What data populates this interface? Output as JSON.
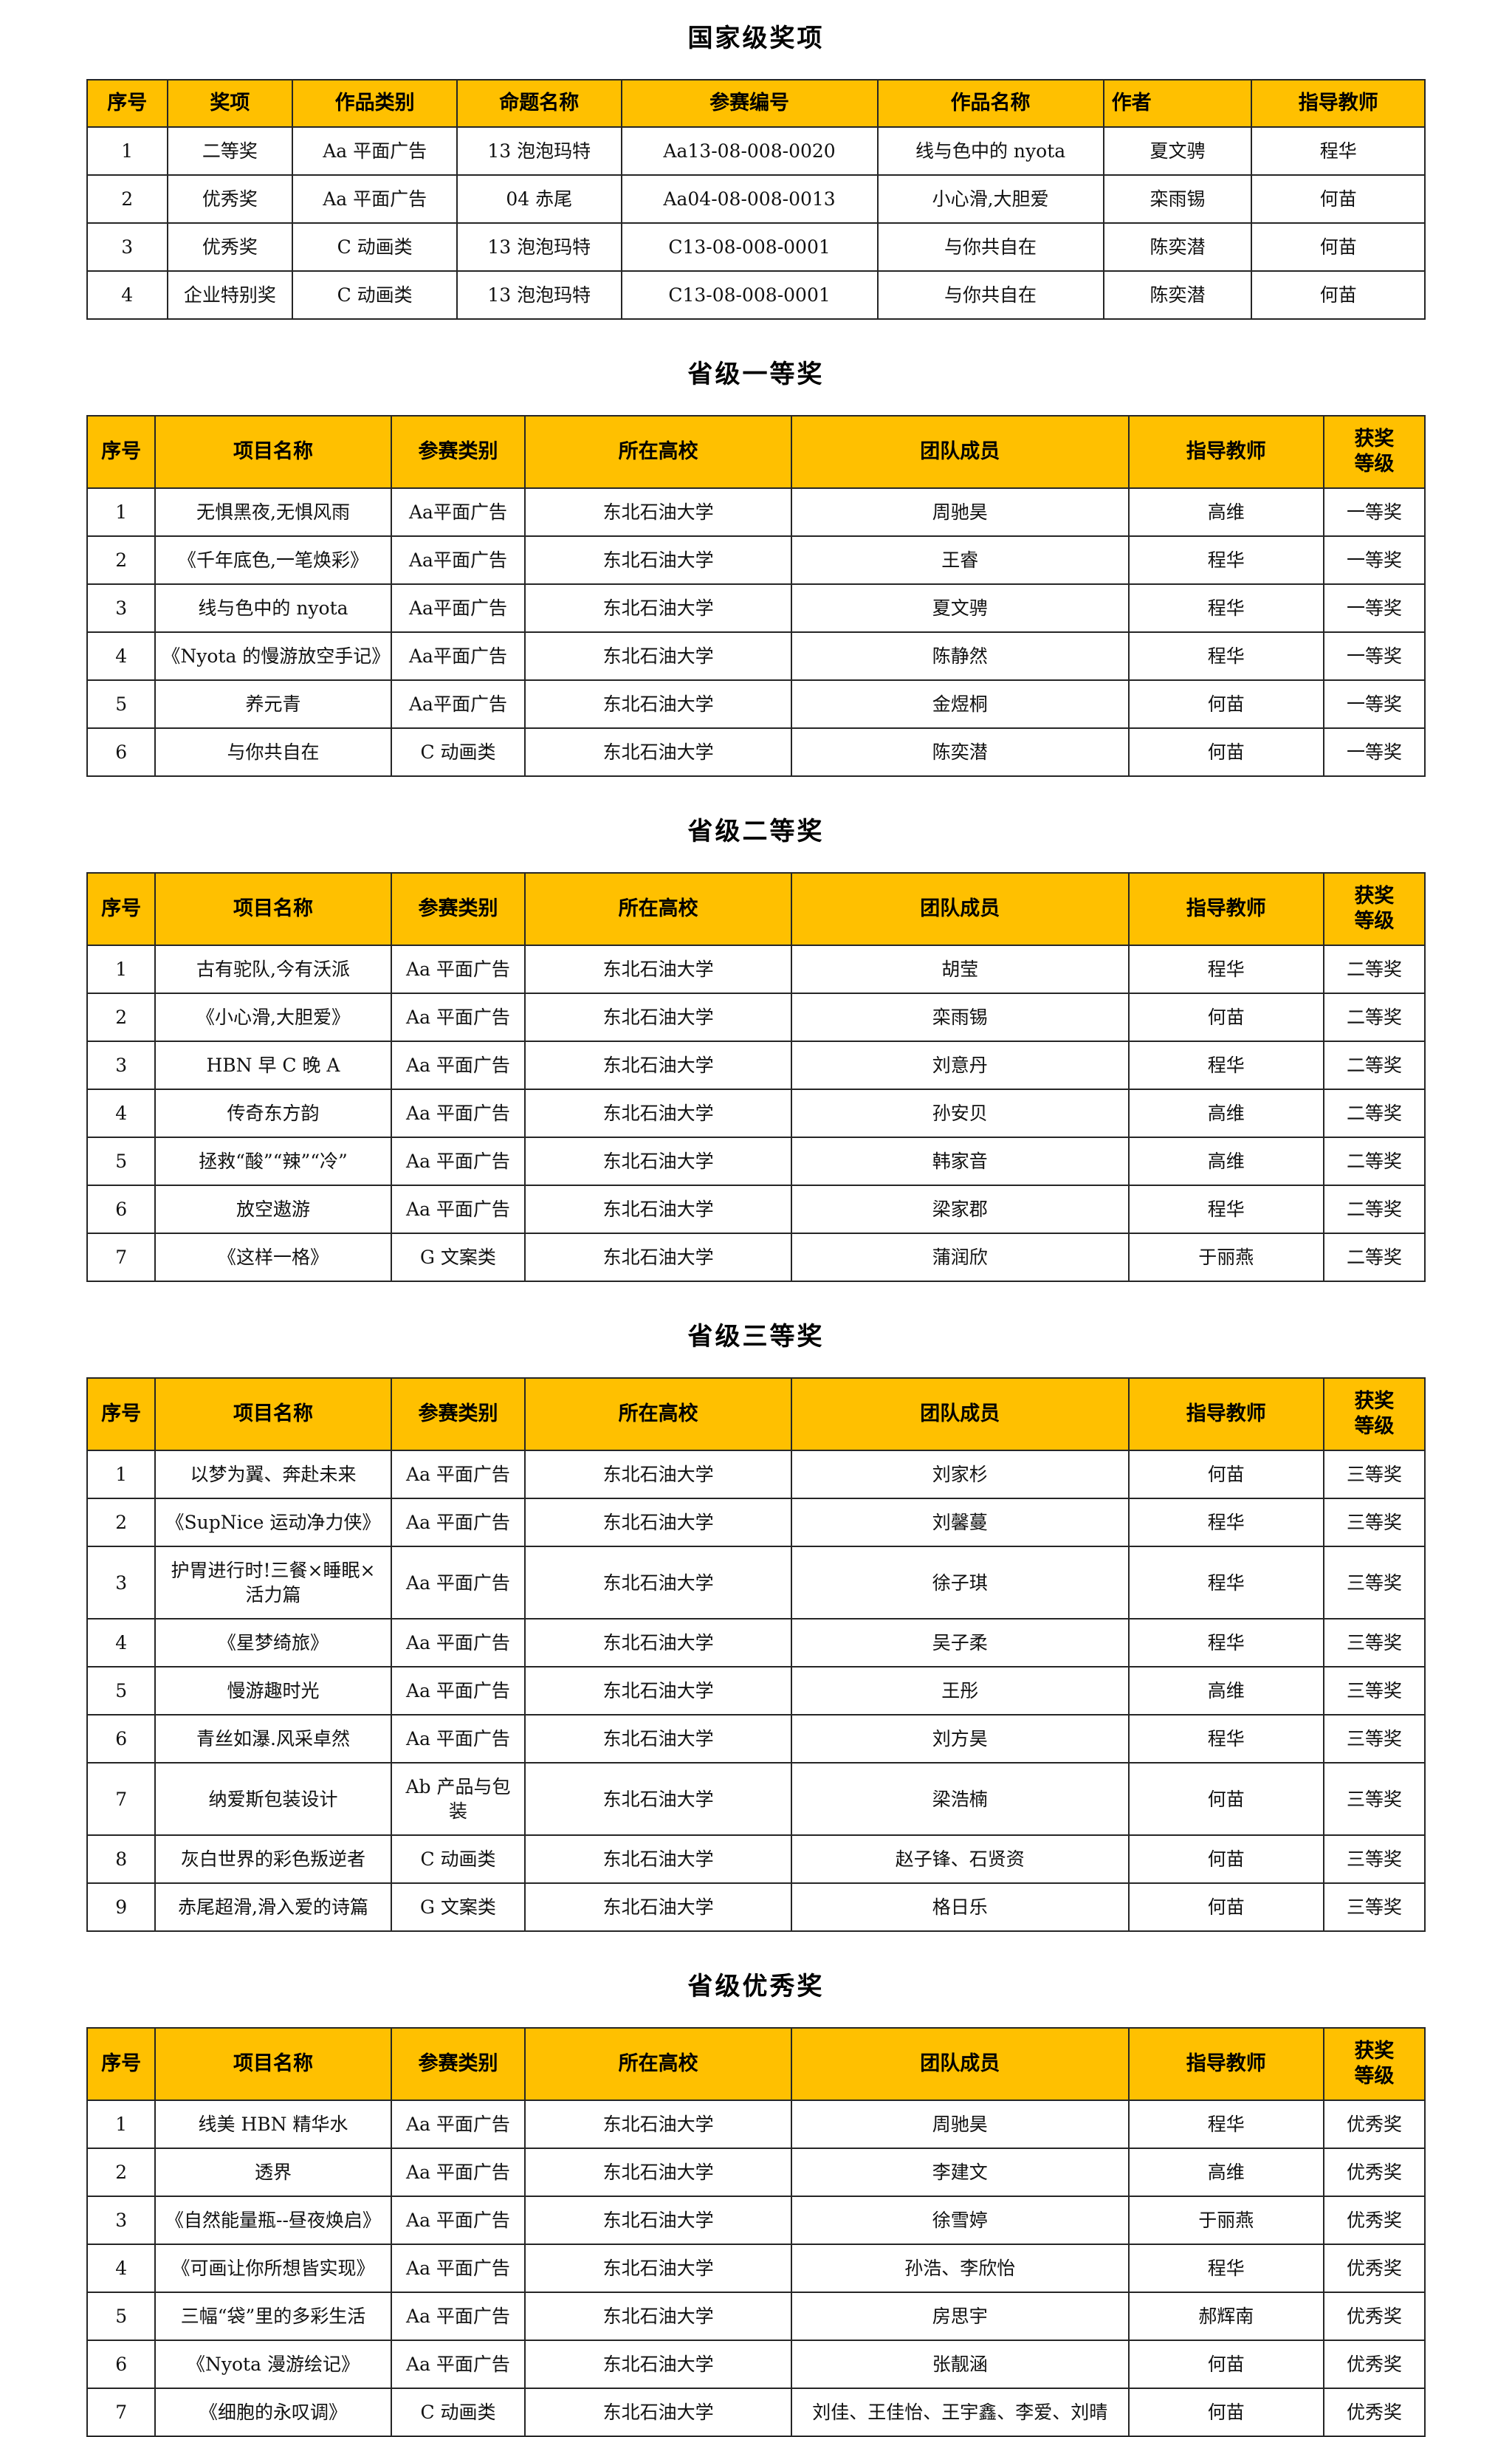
{
  "colors": {
    "header_background": "#FFC000",
    "grid_border": "#262626",
    "text": "#111111",
    "page_background": "#ffffff"
  },
  "sections": [
    {
      "title": "国家级奖项",
      "columns": [
        "序号",
        "奖项",
        "作品类别",
        "命题名称",
        "参赛编号",
        "作品名称",
        "作者",
        "指导教师"
      ],
      "rows": [
        [
          "1",
          "二等奖",
          "Aa 平面广告",
          "13 泡泡玛特",
          "Aa13-08-008-0020",
          "线与色中的 nyota",
          "夏文骋",
          "程华"
        ],
        [
          "2",
          "优秀奖",
          "Aa 平面广告",
          "04 赤尾",
          "Aa04-08-008-0013",
          "小心滑,大胆爱",
          "栾雨锡",
          "何苗"
        ],
        [
          "3",
          "优秀奖",
          "C 动画类",
          "13 泡泡玛特",
          "C13-08-008-0001",
          "与你共自在",
          "陈奕潜",
          "何苗"
        ],
        [
          "4",
          "企业特别奖",
          "C 动画类",
          "13 泡泡玛特",
          "C13-08-008-0001",
          "与你共自在",
          "陈奕潜",
          "何苗"
        ]
      ]
    },
    {
      "title": "省级一等奖",
      "columns": [
        "序号",
        "项目名称",
        "参赛类别",
        "所在高校",
        "团队成员",
        "指导教师",
        "获奖\n等级"
      ],
      "rows": [
        [
          "1",
          "无惧黑夜,无惧风雨",
          "Aa平面广告",
          "东北石油大学",
          "周驰昊",
          "高维",
          "一等奖"
        ],
        [
          "2",
          "《千年底色,一笔焕彩》",
          "Aa平面广告",
          "东北石油大学",
          "王睿",
          "程华",
          "一等奖"
        ],
        [
          "3",
          "线与色中的 nyota",
          "Aa平面广告",
          "东北石油大学",
          "夏文骋",
          "程华",
          "一等奖"
        ],
        [
          "4",
          "《Nyota 的慢游放空手记》",
          "Aa平面广告",
          "东北石油大学",
          "陈静然",
          "程华",
          "一等奖"
        ],
        [
          "5",
          "养元青",
          "Aa平面广告",
          "东北石油大学",
          "金煜桐",
          "何苗",
          "一等奖"
        ],
        [
          "6",
          "与你共自在",
          "C 动画类",
          "东北石油大学",
          "陈奕潜",
          "何苗",
          "一等奖"
        ]
      ]
    },
    {
      "title": "省级二等奖",
      "columns": [
        "序号",
        "项目名称",
        "参赛类别",
        "所在高校",
        "团队成员",
        "指导教师",
        "获奖\n等级"
      ],
      "rows": [
        [
          "1",
          "古有驼队,今有沃派",
          "Aa 平面广告",
          "东北石油大学",
          "胡莹",
          "程华",
          "二等奖"
        ],
        [
          "2",
          "《小心滑,大胆爱》",
          "Aa 平面广告",
          "东北石油大学",
          "栾雨锡",
          "何苗",
          "二等奖"
        ],
        [
          "3",
          "HBN 早 C 晚 A",
          "Aa 平面广告",
          "东北石油大学",
          "刘意丹",
          "程华",
          "二等奖"
        ],
        [
          "4",
          "传奇东方韵",
          "Aa 平面广告",
          "东北石油大学",
          "孙安贝",
          "高维",
          "二等奖"
        ],
        [
          "5",
          "拯救“酸”“辣”“冷”",
          "Aa 平面广告",
          "东北石油大学",
          "韩家音",
          "高维",
          "二等奖"
        ],
        [
          "6",
          "放空遨游",
          "Aa 平面广告",
          "东北石油大学",
          "梁家郡",
          "程华",
          "二等奖"
        ],
        [
          "7",
          "《这样一格》",
          "G 文案类",
          "东北石油大学",
          "蒲润欣",
          "于丽燕",
          "二等奖"
        ]
      ]
    },
    {
      "title": "省级三等奖",
      "columns": [
        "序号",
        "项目名称",
        "参赛类别",
        "所在高校",
        "团队成员",
        "指导教师",
        "获奖\n等级"
      ],
      "rows": [
        [
          "1",
          "以梦为翼、奔赴未来",
          "Aa 平面广告",
          "东北石油大学",
          "刘家杉",
          "何苗",
          "三等奖"
        ],
        [
          "2",
          "《SupNice 运动净力侠》",
          "Aa 平面广告",
          "东北石油大学",
          "刘馨蔓",
          "程华",
          "三等奖"
        ],
        [
          "3",
          "护胃进行时!三餐×睡眠×活力篇",
          "Aa 平面广告",
          "东北石油大学",
          "徐子琪",
          "程华",
          "三等奖"
        ],
        [
          "4",
          "《星梦绮旅》",
          "Aa 平面广告",
          "东北石油大学",
          "吴子柔",
          "程华",
          "三等奖"
        ],
        [
          "5",
          "慢游趣时光",
          "Aa 平面广告",
          "东北石油大学",
          "王彤",
          "高维",
          "三等奖"
        ],
        [
          "6",
          "青丝如瀑.风采卓然",
          "Aa 平面广告",
          "东北石油大学",
          "刘方昊",
          "程华",
          "三等奖"
        ],
        [
          "7",
          "纳爱斯包装设计",
          "Ab 产品与包装",
          "东北石油大学",
          "梁浩楠",
          "何苗",
          "三等奖"
        ],
        [
          "8",
          "灰白世界的彩色叛逆者",
          "C 动画类",
          "东北石油大学",
          "赵子锋、石贤资",
          "何苗",
          "三等奖"
        ],
        [
          "9",
          "赤尾超滑,滑入爱的诗篇",
          "G 文案类",
          "东北石油大学",
          "格日乐",
          "何苗",
          "三等奖"
        ]
      ]
    },
    {
      "title": "省级优秀奖",
      "columns": [
        "序号",
        "项目名称",
        "参赛类别",
        "所在高校",
        "团队成员",
        "指导教师",
        "获奖\n等级"
      ],
      "rows": [
        [
          "1",
          "线美 HBN 精华水",
          "Aa 平面广告",
          "东北石油大学",
          "周驰昊",
          "程华",
          "优秀奖"
        ],
        [
          "2",
          "透界",
          "Aa 平面广告",
          "东北石油大学",
          "李建文",
          "高维",
          "优秀奖"
        ],
        [
          "3",
          "《自然能量瓶--昼夜焕启》",
          "Aa 平面广告",
          "东北石油大学",
          "徐雪婷",
          "于丽燕",
          "优秀奖"
        ],
        [
          "4",
          "《可画让你所想皆实现》",
          "Aa 平面广告",
          "东北石油大学",
          "孙浩、李欣怡",
          "程华",
          "优秀奖"
        ],
        [
          "5",
          "三幅“袋”里的多彩生活",
          "Aa 平面广告",
          "东北石油大学",
          "房思宇",
          "郝辉南",
          "优秀奖"
        ],
        [
          "6",
          "《Nyota 漫游绘记》",
          "Aa 平面广告",
          "东北石油大学",
          "张靓涵",
          "何苗",
          "优秀奖"
        ],
        [
          "7",
          "《细胞的永叹调》",
          "C 动画类",
          "东北石油大学",
          "刘佳、王佳怡、王宇鑫、李爱、刘晴",
          "何苗",
          "优秀奖"
        ]
      ]
    }
  ]
}
